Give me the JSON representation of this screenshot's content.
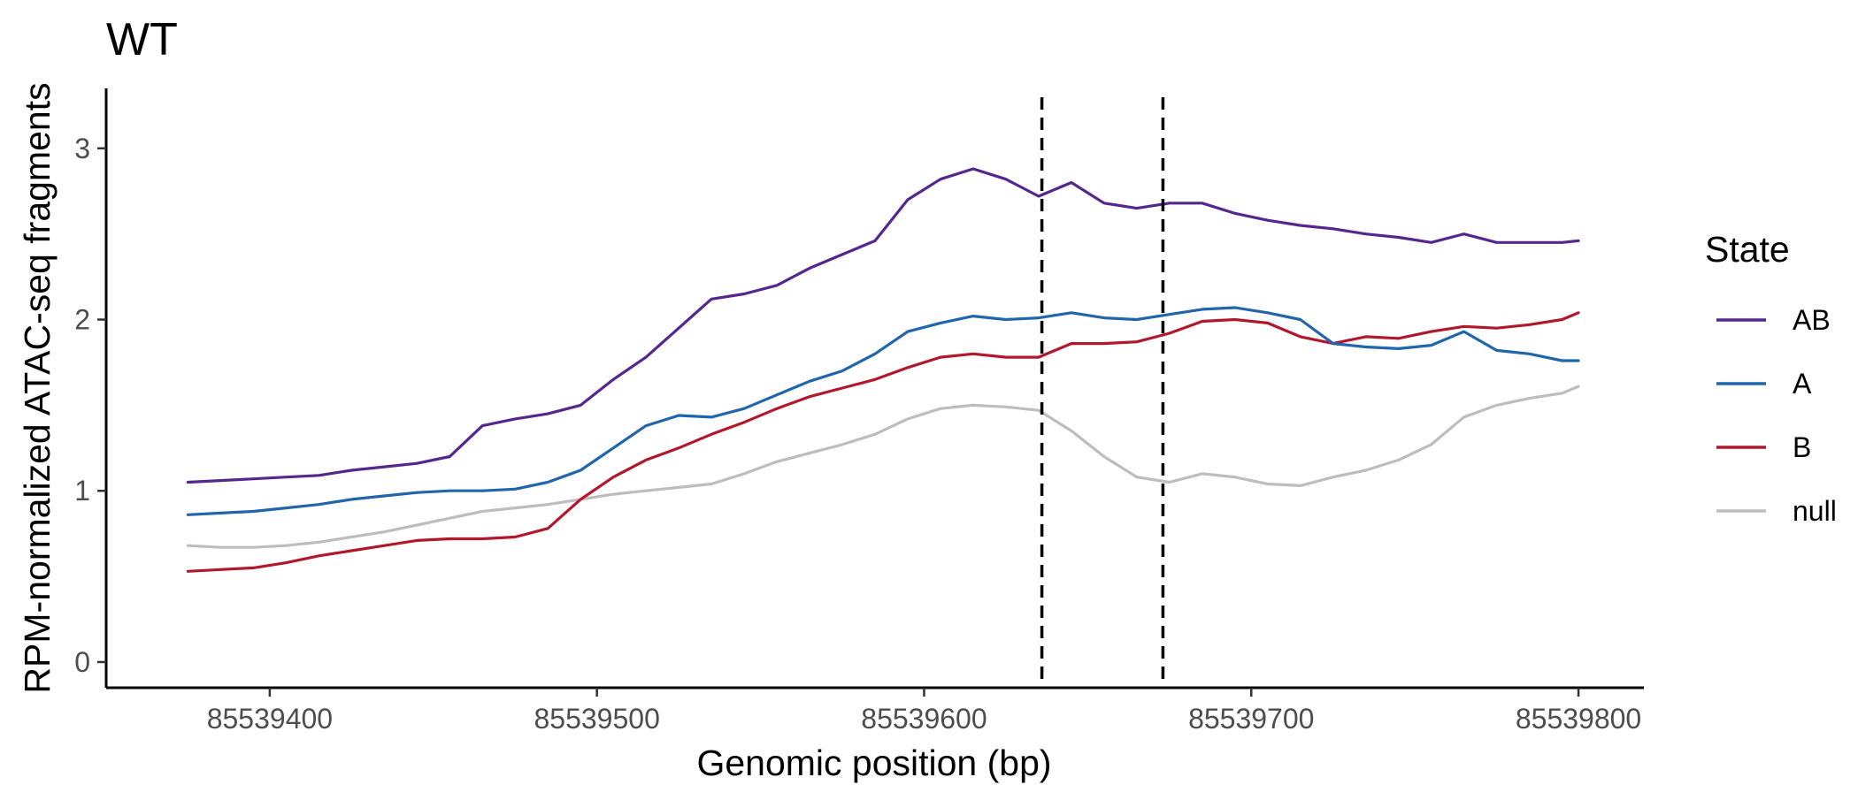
{
  "chart_data": {
    "type": "line",
    "title": "WT",
    "xlabel": "Genomic position (bp)",
    "ylabel": "RPM-normalized ATAC-seq fragments",
    "xlim": [
      85539350,
      85539820
    ],
    "ylim": [
      -0.15,
      3.35
    ],
    "xticks": [
      85539400,
      85539500,
      85539600,
      85539700,
      85539800
    ],
    "xtick_labels": [
      "85539400",
      "85539500",
      "85539600",
      "85539700",
      "85539800"
    ],
    "yticks": [
      0,
      1,
      2,
      3
    ],
    "ytick_labels": [
      "0",
      "1",
      "2",
      "3"
    ],
    "grid": false,
    "legend": {
      "title": "State",
      "position": "right"
    },
    "vlines": [
      {
        "x": 85539636,
        "style": "dashed",
        "color": "#000000"
      },
      {
        "x": 85539673,
        "style": "dashed",
        "color": "#000000"
      }
    ],
    "x": [
      85539375,
      85539385,
      85539395,
      85539405,
      85539415,
      85539425,
      85539435,
      85539445,
      85539455,
      85539465,
      85539475,
      85539485,
      85539495,
      85539505,
      85539515,
      85539525,
      85539535,
      85539545,
      85539555,
      85539565,
      85539575,
      85539585,
      85539595,
      85539605,
      85539615,
      85539625,
      85539635,
      85539645,
      85539655,
      85539665,
      85539675,
      85539685,
      85539695,
      85539705,
      85539715,
      85539725,
      85539735,
      85539745,
      85539755,
      85539765,
      85539775,
      85539785,
      85539795,
      85539800
    ],
    "series": [
      {
        "name": "AB",
        "color": "#54278f",
        "values": [
          1.05,
          1.06,
          1.07,
          1.08,
          1.09,
          1.12,
          1.14,
          1.16,
          1.2,
          1.38,
          1.42,
          1.45,
          1.5,
          1.65,
          1.78,
          1.95,
          2.12,
          2.15,
          2.2,
          2.3,
          2.38,
          2.46,
          2.7,
          2.82,
          2.88,
          2.82,
          2.72,
          2.8,
          2.68,
          2.65,
          2.68,
          2.68,
          2.62,
          2.58,
          2.55,
          2.53,
          2.5,
          2.48,
          2.45,
          2.5,
          2.45,
          2.45,
          2.45,
          2.46
        ]
      },
      {
        "name": "A",
        "color": "#2166ac",
        "values": [
          0.86,
          0.87,
          0.88,
          0.9,
          0.92,
          0.95,
          0.97,
          0.99,
          1.0,
          1.0,
          1.01,
          1.05,
          1.12,
          1.25,
          1.38,
          1.44,
          1.43,
          1.48,
          1.56,
          1.64,
          1.7,
          1.8,
          1.93,
          1.98,
          2.02,
          2.0,
          2.01,
          2.04,
          2.01,
          2.0,
          2.03,
          2.06,
          2.07,
          2.04,
          2.0,
          1.86,
          1.84,
          1.83,
          1.85,
          1.93,
          1.82,
          1.8,
          1.76,
          1.76
        ]
      },
      {
        "name": "B",
        "color": "#b2182b",
        "values": [
          0.53,
          0.54,
          0.55,
          0.58,
          0.62,
          0.65,
          0.68,
          0.71,
          0.72,
          0.72,
          0.73,
          0.78,
          0.95,
          1.08,
          1.18,
          1.25,
          1.33,
          1.4,
          1.48,
          1.55,
          1.6,
          1.65,
          1.72,
          1.78,
          1.8,
          1.78,
          1.78,
          1.86,
          1.86,
          1.87,
          1.92,
          1.99,
          2.0,
          1.98,
          1.9,
          1.86,
          1.9,
          1.89,
          1.93,
          1.96,
          1.95,
          1.97,
          2.0,
          2.04
        ]
      },
      {
        "name": "null",
        "color": "#bdbdbd",
        "values": [
          0.68,
          0.67,
          0.67,
          0.68,
          0.7,
          0.73,
          0.76,
          0.8,
          0.84,
          0.88,
          0.9,
          0.92,
          0.95,
          0.98,
          1.0,
          1.02,
          1.04,
          1.1,
          1.17,
          1.22,
          1.27,
          1.33,
          1.42,
          1.48,
          1.5,
          1.49,
          1.47,
          1.35,
          1.2,
          1.08,
          1.05,
          1.1,
          1.08,
          1.04,
          1.03,
          1.08,
          1.12,
          1.18,
          1.27,
          1.43,
          1.5,
          1.54,
          1.57,
          1.61
        ]
      }
    ]
  }
}
